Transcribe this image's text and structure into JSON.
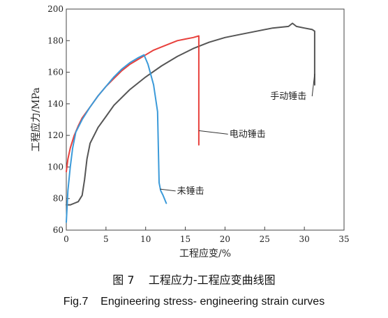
{
  "chart_data": {
    "type": "line",
    "xlabel": "工程应变/%",
    "ylabel": "工程应力/MPa",
    "xlim": [
      0,
      35
    ],
    "ylim": [
      60,
      200
    ],
    "xticks": [
      "0",
      "5",
      "10",
      "15",
      "20",
      "25",
      "30",
      "35"
    ],
    "yticks": [
      "60",
      "80",
      "100",
      "120",
      "140",
      "160",
      "180",
      "200"
    ],
    "grid": false,
    "series": [
      {
        "name": "手动锤击",
        "color": "#555555",
        "x": [
          0,
          0.5,
          1,
          1.5,
          2,
          2.3,
          2.6,
          3,
          4,
          5,
          6,
          8,
          10,
          12,
          14,
          16,
          18,
          20,
          22,
          24,
          26,
          28,
          28.5,
          29,
          30,
          31,
          31.3,
          31.3,
          31.3
        ],
        "y": [
          76,
          76,
          77,
          78,
          82,
          92,
          105,
          115,
          125,
          132,
          139,
          149,
          157,
          164,
          170,
          175,
          179,
          182,
          184,
          186,
          188,
          189,
          191,
          189,
          188,
          187,
          186,
          170,
          152
        ]
      },
      {
        "name": "电动锤击",
        "color": "#e8403c",
        "x": [
          0,
          0.2,
          0.5,
          1,
          1.5,
          2,
          3,
          4,
          5,
          6,
          7,
          8,
          9,
          10,
          11,
          12,
          13,
          14,
          15,
          16,
          16.7,
          16.7,
          16.7
        ],
        "y": [
          97,
          105,
          112,
          120,
          126,
          131,
          138,
          145,
          151,
          156,
          161,
          165,
          168,
          171,
          174,
          176,
          178,
          180,
          181,
          182,
          183,
          150,
          114
        ]
      },
      {
        "name": "未锤击",
        "color": "#3b9ad9",
        "x": [
          0,
          0.2,
          0.5,
          0.8,
          1.2,
          2,
          3,
          4,
          5,
          6,
          7,
          8,
          9,
          9.8,
          10.3,
          11,
          11.5,
          11.7,
          11.9,
          12.2,
          12.6
        ],
        "y": [
          65,
          85,
          100,
          112,
          122,
          130,
          138,
          145,
          151,
          157,
          162,
          166,
          169,
          171,
          165,
          152,
          135,
          90,
          85,
          82,
          77
        ]
      }
    ],
    "annotations": [
      {
        "text": "手动锤击",
        "x": 31.3,
        "y": 159,
        "tx": 25.7,
        "ty": 143
      },
      {
        "text": "电动锤击",
        "x": 16.7,
        "y": 123,
        "tx": 20.2,
        "ty": 119
      },
      {
        "text": "未锤击",
        "x": 11.8,
        "y": 86,
        "tx": 13.6,
        "ty": 83
      }
    ]
  },
  "caption_cn": "图 7    工程应力-工程应变曲线图",
  "caption_en": "Fig.7    Engineering stress- engineering strain curves"
}
